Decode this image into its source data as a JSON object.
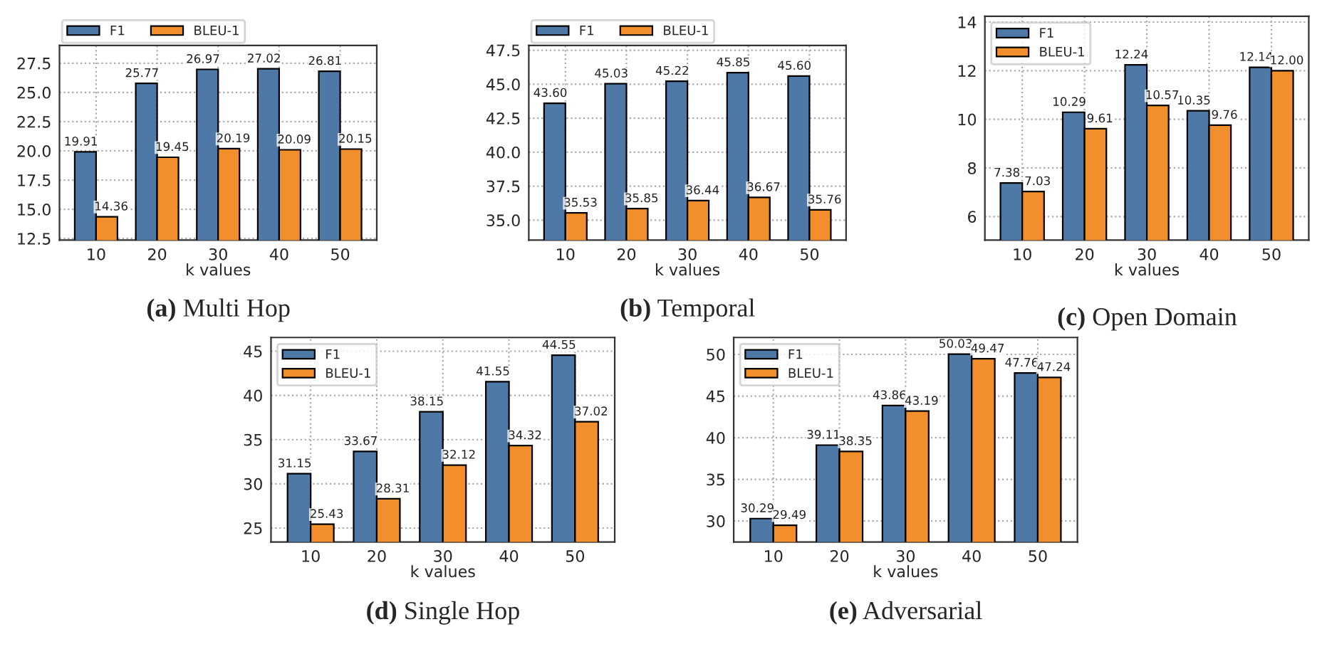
{
  "chart_data": [
    {
      "type": "bar",
      "title": "(a) Multi Hop",
      "xlabel": "k values",
      "categories": [
        "10",
        "20",
        "30",
        "40",
        "50"
      ],
      "ylim": [
        12.36,
        29.02
      ],
      "yticks": [
        12.5,
        {
          "value": 15,
          "label": "15.0"
        },
        17.5,
        {
          "value": 20,
          "label": "20.0"
        },
        22.5,
        {
          "value": 25,
          "label": "25.0"
        },
        27.5
      ],
      "grid": true,
      "legend": "top",
      "series": [
        {
          "name": "F1",
          "color": "#4e79a7",
          "values": [
            19.91,
            25.77,
            26.97,
            27.02,
            26.81
          ],
          "value_labels": [
            "19.91",
            "25.77",
            "26.97",
            "27.02",
            "26.81"
          ]
        },
        {
          "name": "BLEU-1",
          "color": "#f28e2b",
          "values": [
            14.36,
            19.45,
            20.19,
            20.09,
            20.15
          ],
          "value_labels": [
            "14.36",
            "19.45",
            "20.19",
            "20.09",
            "20.15"
          ]
        }
      ]
    },
    {
      "type": "bar",
      "title": "(b) Temporal",
      "xlabel": "k values",
      "categories": [
        "10",
        "20",
        "30",
        "40",
        "50"
      ],
      "ylim": [
        33.53,
        47.85
      ],
      "yticks": [
        {
          "value": 35,
          "label": "35.0"
        },
        37.5,
        {
          "value": 40,
          "label": "40.0"
        },
        42.5,
        {
          "value": 45,
          "label": "45.0"
        },
        47.5
      ],
      "grid": true,
      "legend": "top",
      "series": [
        {
          "name": "F1",
          "color": "#4e79a7",
          "values": [
            43.6,
            45.03,
            45.22,
            45.85,
            45.6
          ],
          "value_labels": [
            "43.60",
            "45.03",
            "45.22",
            "45.85",
            "45.60"
          ]
        },
        {
          "name": "BLEU-1",
          "color": "#f28e2b",
          "values": [
            35.53,
            35.85,
            36.44,
            36.67,
            35.76
          ],
          "value_labels": [
            "35.53",
            "35.85",
            "36.44",
            "36.67",
            "35.76"
          ]
        }
      ]
    },
    {
      "type": "bar",
      "title": "(c) Open Domain",
      "xlabel": "k values",
      "categories": [
        "10",
        "20",
        "30",
        "40",
        "50"
      ],
      "ylim": [
        5.03,
        14.24
      ],
      "yticks": [
        6,
        8,
        10,
        12,
        14
      ],
      "grid": true,
      "legend": "top left",
      "series": [
        {
          "name": "F1",
          "color": "#4e79a7",
          "values": [
            7.38,
            10.29,
            12.24,
            10.35,
            12.14
          ],
          "value_labels": [
            "7.38",
            "10.29",
            "12.24",
            "10.35",
            "12.14"
          ]
        },
        {
          "name": "BLEU-1",
          "color": "#f28e2b",
          "values": [
            7.03,
            9.61,
            10.57,
            9.76,
            12.0
          ],
          "value_labels": [
            "7.03",
            "9.61",
            "10.57",
            "9.76",
            "12.00"
          ]
        }
      ]
    },
    {
      "type": "bar",
      "title": "(d) Single Hop",
      "xlabel": "k values",
      "categories": [
        "10",
        "20",
        "30",
        "40",
        "50"
      ],
      "ylim": [
        23.43,
        46.55
      ],
      "yticks": [
        25,
        30,
        35,
        40,
        45
      ],
      "grid": true,
      "legend": "top left",
      "series": [
        {
          "name": "F1",
          "color": "#4e79a7",
          "values": [
            31.15,
            33.67,
            38.15,
            41.55,
            44.55
          ],
          "value_labels": [
            "31.15",
            "33.67",
            "38.15",
            "41.55",
            "44.55"
          ]
        },
        {
          "name": "BLEU-1",
          "color": "#f28e2b",
          "values": [
            25.43,
            28.31,
            32.12,
            34.32,
            37.02
          ],
          "value_labels": [
            "25.43",
            "28.31",
            "32.12",
            "34.32",
            "37.02"
          ]
        }
      ]
    },
    {
      "type": "bar",
      "title": "(e) Adversarial",
      "xlabel": "k values",
      "categories": [
        "10",
        "20",
        "30",
        "40",
        "50"
      ],
      "ylim": [
        27.49,
        52.03
      ],
      "yticks": [
        30,
        35,
        40,
        45,
        50
      ],
      "grid": true,
      "legend": "top left",
      "series": [
        {
          "name": "F1",
          "color": "#4e79a7",
          "values": [
            30.29,
            39.11,
            43.86,
            50.03,
            47.76
          ],
          "value_labels": [
            "30.29",
            "39.11",
            "43.86",
            "50.03",
            "47.76"
          ]
        },
        {
          "name": "BLEU-1",
          "color": "#f28e2b",
          "values": [
            29.49,
            38.35,
            43.19,
            49.47,
            47.24
          ],
          "value_labels": [
            "29.49",
            "38.35",
            "43.19",
            "49.47",
            "47.24"
          ]
        }
      ]
    }
  ]
}
